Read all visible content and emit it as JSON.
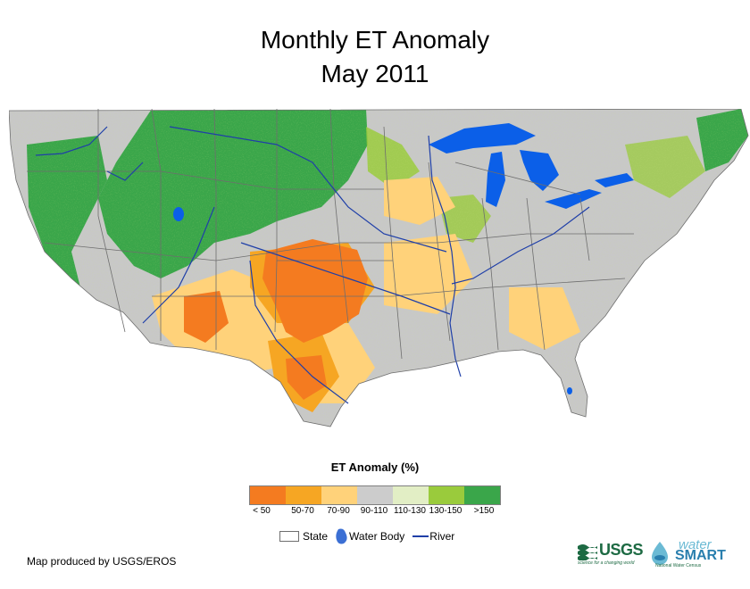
{
  "title_line1": "Monthly ET Anomaly",
  "title_line2": "May 2011",
  "legend": {
    "title": "ET Anomaly (%)",
    "classes": [
      {
        "label": "< 50",
        "color": "#f47b20"
      },
      {
        "label": "50-70",
        "color": "#f6a623"
      },
      {
        "label": "70-90",
        "color": "#ffd27a"
      },
      {
        "label": "90-110",
        "color": "#cccccc"
      },
      {
        "label": "110-130",
        "color": "#e2eec5"
      },
      {
        "label": "130-150",
        "color": "#9acb3c"
      },
      {
        "label": ">150",
        "color": "#3aa64a"
      }
    ],
    "keys": {
      "state": "State",
      "water_body": "Water Body",
      "river": "River"
    }
  },
  "colors": {
    "water": "#0b5fe8",
    "river": "#1f3fa8",
    "state_line": "#6e6e6e"
  },
  "credit": "Map produced by USGS/EROS",
  "logos": {
    "usgs": "USGS",
    "usgs_tagline": "science for a changing world",
    "water": "water",
    "smart": "SMART",
    "ws_tagline": "National Water Census"
  }
}
